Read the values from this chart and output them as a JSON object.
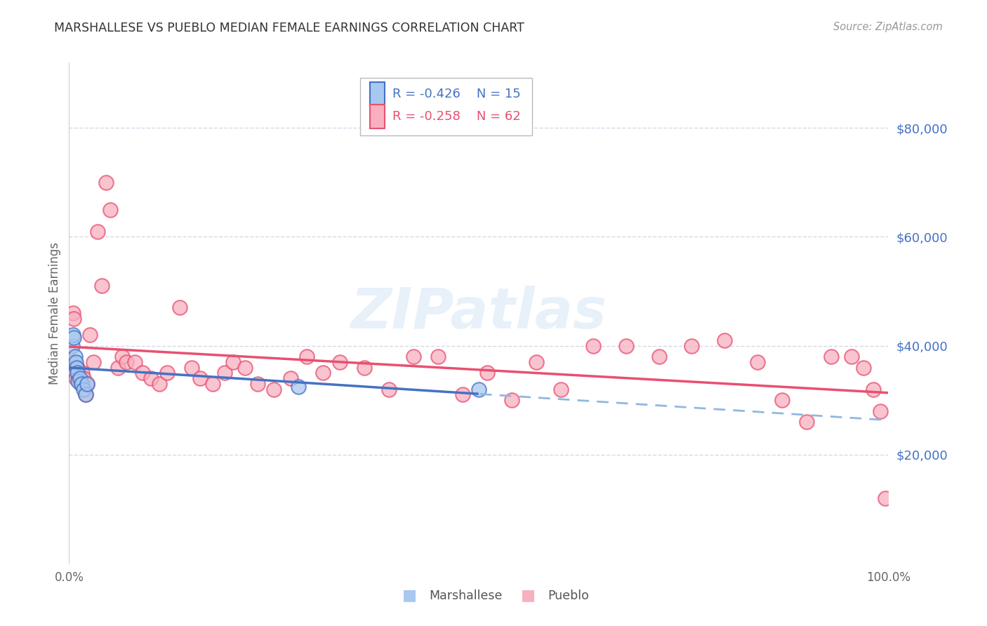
{
  "title": "MARSHALLESE VS PUEBLO MEDIAN FEMALE EARNINGS CORRELATION CHART",
  "source": "Source: ZipAtlas.com",
  "ylabel": "Median Female Earnings",
  "ytick_values": [
    20000,
    40000,
    60000,
    80000
  ],
  "ymin": 0,
  "ymax": 92000,
  "xmin": 0.0,
  "xmax": 1.0,
  "marshallese_color": "#a8c8f0",
  "pueblo_color": "#f8b0c0",
  "marshallese_line_color": "#4472c4",
  "pueblo_line_color": "#e85070",
  "marshallese_dashed_color": "#90b8e0",
  "grid_color": "#d8d8e8",
  "background_color": "#ffffff",
  "right_tick_color": "#4472c4",
  "marsh_x": [
    0.004,
    0.005,
    0.006,
    0.007,
    0.008,
    0.009,
    0.01,
    0.011,
    0.013,
    0.015,
    0.018,
    0.02,
    0.022,
    0.28,
    0.5
  ],
  "marsh_y": [
    40000,
    42000,
    41500,
    38000,
    37000,
    36000,
    35000,
    33500,
    34000,
    33000,
    32000,
    31000,
    33000,
    32500,
    32000
  ],
  "pueblo_x": [
    0.003,
    0.005,
    0.006,
    0.007,
    0.008,
    0.01,
    0.012,
    0.014,
    0.016,
    0.018,
    0.02,
    0.022,
    0.025,
    0.03,
    0.035,
    0.04,
    0.045,
    0.05,
    0.06,
    0.065,
    0.07,
    0.08,
    0.09,
    0.1,
    0.11,
    0.12,
    0.135,
    0.15,
    0.16,
    0.175,
    0.19,
    0.2,
    0.215,
    0.23,
    0.25,
    0.27,
    0.29,
    0.31,
    0.33,
    0.36,
    0.39,
    0.42,
    0.45,
    0.48,
    0.51,
    0.54,
    0.57,
    0.6,
    0.64,
    0.68,
    0.72,
    0.76,
    0.8,
    0.84,
    0.87,
    0.9,
    0.93,
    0.955,
    0.97,
    0.982,
    0.99,
    0.996
  ],
  "pueblo_y": [
    37000,
    46000,
    45000,
    35000,
    34000,
    36000,
    34000,
    33000,
    35000,
    34000,
    31000,
    33000,
    42000,
    37000,
    61000,
    51000,
    70000,
    65000,
    36000,
    38000,
    37000,
    37000,
    35000,
    34000,
    33000,
    35000,
    47000,
    36000,
    34000,
    33000,
    35000,
    37000,
    36000,
    33000,
    32000,
    34000,
    38000,
    35000,
    37000,
    36000,
    32000,
    38000,
    38000,
    31000,
    35000,
    30000,
    37000,
    32000,
    40000,
    40000,
    38000,
    40000,
    41000,
    37000,
    30000,
    26000,
    38000,
    38000,
    36000,
    32000,
    28000,
    12000
  ]
}
